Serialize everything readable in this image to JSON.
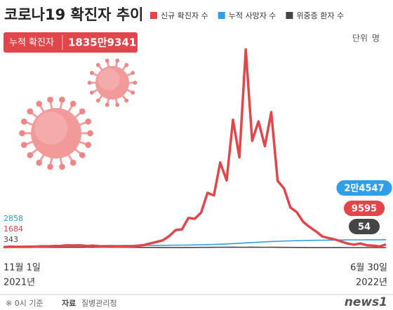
{
  "chart_data": {
    "type": "line",
    "title": "코로나19 확진자 추이",
    "total_label": "누적 확진자",
    "total_value": "1835만9341",
    "unit_label": "단위",
    "unit": "명",
    "categories": [
      "11월 1일",
      null,
      null,
      null,
      null,
      null,
      null,
      null,
      null,
      null,
      null,
      null,
      null,
      null,
      null,
      null,
      null,
      null,
      null,
      null,
      null,
      null,
      null,
      null,
      null,
      null,
      null,
      null,
      null,
      null,
      null,
      null,
      null,
      null,
      null,
      null,
      null,
      null,
      null,
      null,
      null,
      null,
      null,
      null,
      null,
      null,
      null,
      null,
      null,
      null,
      null,
      null,
      null,
      null,
      null,
      null,
      null,
      null,
      null,
      null,
      "6월 30일"
    ],
    "category_years": [
      "2021년",
      "2022년"
    ],
    "ylim": [
      0,
      640000
    ],
    "series": [
      {
        "name": "신규 확진자 수",
        "color": "#e2464b",
        "values": [
          1684,
          2667,
          2482,
          2520,
          3187,
          3034,
          4115,
          3938,
          5123,
          5352,
          7022,
          6689,
          7314,
          5318,
          5842,
          4207,
          3833,
          4444,
          3007,
          4385,
          3858,
          5804,
          7630,
          13009,
          17513,
          22907,
          36362,
          54941,
          57175,
          93135,
          90443,
          109831,
          171452,
          163566,
          266853,
          210716,
          400741,
          282987,
          621328,
          334708,
          395598,
          318130,
          424641,
          209169,
          185566,
          125846,
          111319,
          81058,
          64725,
          51131,
          35117,
          29581,
          25434,
          18816,
          12542,
          9135,
          12694,
          7198,
          6068,
          3423,
          9595
        ]
      },
      {
        "name": "누적 사망자 수",
        "color": "#2f9fe8",
        "values": [
          2858,
          2940,
          3050,
          3190,
          3360,
          3580,
          3810,
          4130,
          4450,
          4760,
          5070,
          5380,
          5620,
          5840,
          6050,
          6220,
          6380,
          6500,
          6590,
          6680,
          6750,
          6830,
          6880,
          6960,
          7050,
          7140,
          7250,
          7400,
          7610,
          7900,
          8260,
          8700,
          9250,
          9900,
          10600,
          11480,
          12430,
          13430,
          14640,
          15850,
          17000,
          18000,
          19000,
          19830,
          20440,
          21000,
          21600,
          22050,
          22460,
          22800,
          23100,
          23350,
          23600,
          23800,
          23950,
          24100,
          24230,
          24330,
          24420,
          24490,
          24547
        ],
        "value_labels": [
          null,
          null,
          null,
          null,
          null,
          null,
          null,
          null,
          null,
          null,
          null,
          null,
          null,
          null,
          null,
          null,
          null,
          null,
          null,
          null,
          null,
          null,
          null,
          null,
          null,
          null,
          null,
          null,
          null,
          null,
          null,
          null,
          null,
          null,
          null,
          null,
          null,
          null,
          null,
          null,
          null,
          null,
          null,
          null,
          null,
          null,
          null,
          null,
          null,
          null,
          null,
          null,
          null,
          null,
          null,
          null,
          null,
          null,
          null,
          null,
          "2만4547"
        ]
      },
      {
        "name": "위중증 환자 수",
        "color": "#454545",
        "values": [
          343,
          378,
          405,
          475,
          522,
          586,
          617,
          661,
          723,
          774,
          840,
          906,
          989,
          1025,
          1084,
          1078,
          1022,
          936,
          882,
          794,
          715,
          626,
          532,
          431,
          385,
          288,
          272,
          275,
          306,
          439,
          480,
          588,
          715,
          955,
          1116,
          1158,
          1244,
          1104,
          1159,
          1273,
          1093,
          1014,
          1108,
          868,
          747,
          613,
          460,
          417,
          326,
          270,
          257,
          197,
          159,
          121,
          98,
          94,
          75,
          62,
          56,
          59,
          54
        ]
      }
    ],
    "note": "※ 0시 기준",
    "source_label": "자료",
    "source": "질병관리청",
    "logo": "news1"
  }
}
